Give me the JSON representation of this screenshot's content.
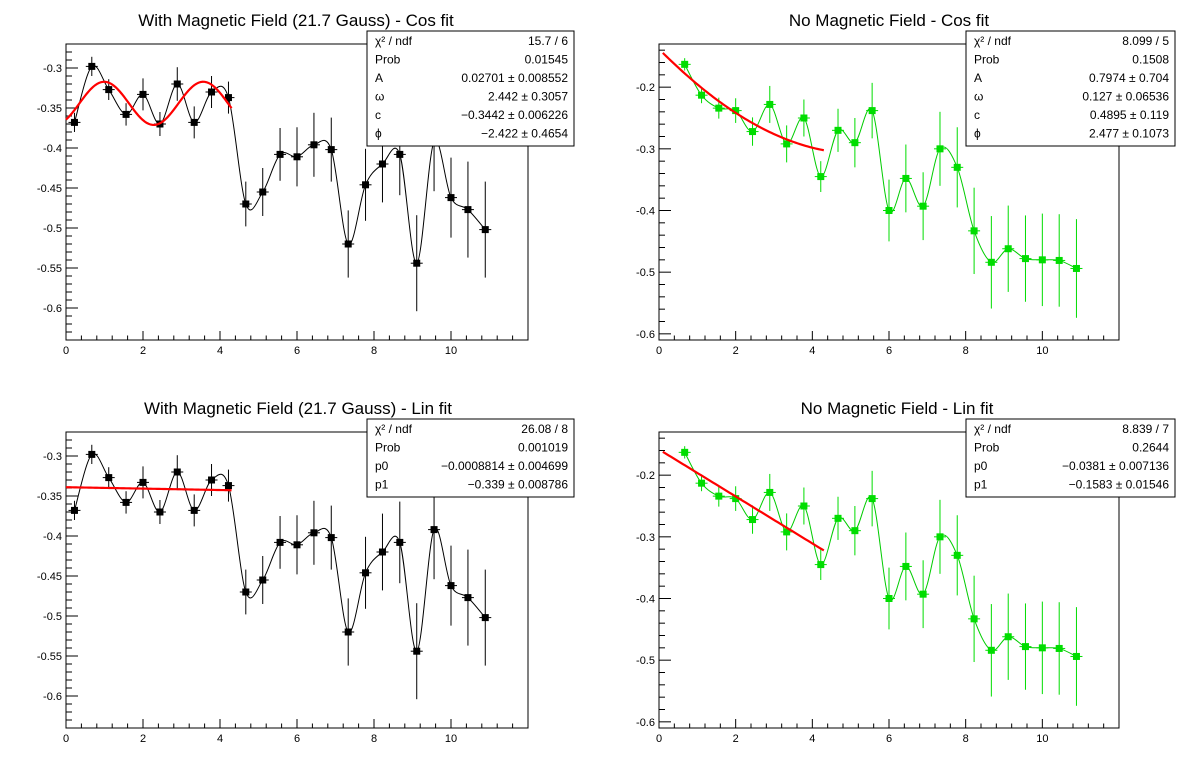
{
  "chart_data": [
    {
      "type": "scatter",
      "title": "With Magnetic Field (21.7 Gauss) - Cos fit",
      "xlim": [
        0,
        12
      ],
      "ylim": [
        -0.64,
        -0.27
      ],
      "xticks": [
        0,
        2,
        4,
        6,
        8,
        10
      ],
      "yticks": [
        -0.6,
        -0.55,
        -0.5,
        -0.45,
        -0.4,
        -0.35,
        -0.3
      ],
      "xtick_labels": [
        "0",
        "2",
        "4",
        "6",
        "8",
        "10"
      ],
      "ytick_labels": [
        "-0.6",
        "-0.55",
        "-0.5",
        "-0.45",
        "-0.4",
        "-0.35",
        "-0.3"
      ],
      "marker_color": "#000000",
      "curve_color": "#000000",
      "fit_color": "#ff0000",
      "points": {
        "x": [
          0.22,
          0.67,
          1.11,
          1.56,
          2.0,
          2.44,
          2.89,
          3.33,
          3.78,
          4.22,
          4.67,
          5.11,
          5.56,
          6.0,
          6.44,
          6.89,
          7.33,
          7.78,
          8.22,
          8.67,
          9.11,
          9.56,
          10.0,
          10.44,
          10.89
        ],
        "y": [
          -0.368,
          -0.298,
          -0.327,
          -0.358,
          -0.333,
          -0.37,
          -0.32,
          -0.368,
          -0.33,
          -0.337,
          -0.47,
          -0.455,
          -0.408,
          -0.411,
          -0.396,
          -0.402,
          -0.52,
          -0.446,
          -0.42,
          -0.408,
          -0.544,
          -0.392,
          -0.462,
          -0.477,
          -0.502
        ],
        "err": [
          0.012,
          0.012,
          0.013,
          0.014,
          0.02,
          0.015,
          0.021,
          0.02,
          0.02,
          0.02,
          0.028,
          0.03,
          0.033,
          0.037,
          0.04,
          0.04,
          0.042,
          0.045,
          0.048,
          0.051,
          0.06,
          0.062,
          0.05,
          0.06,
          0.06
        ]
      },
      "fit": {
        "model": "cos",
        "A": 0.02701,
        "omega": 2.442,
        "c": -0.3442,
        "phi": -2.422,
        "xrange": [
          0.0,
          4.3
        ]
      },
      "stats": [
        {
          "label": "χ² / ndf",
          "value": "15.7 / 6"
        },
        {
          "label": "Prob",
          "value": "0.01545"
        },
        {
          "label": "A",
          "value": "0.02701 ± 0.008552"
        },
        {
          "label": "ω",
          "value": "2.442 ± 0.3057"
        },
        {
          "label": "c",
          "value": "−0.3442 ± 0.006226"
        },
        {
          "label": "ϕ",
          "value": "−2.422 ± 0.4654"
        }
      ]
    },
    {
      "type": "scatter",
      "title": "No Magnetic Field - Cos fit",
      "xlim": [
        0,
        12
      ],
      "ylim": [
        -0.61,
        -0.13
      ],
      "xticks": [
        0,
        2,
        4,
        6,
        8,
        10
      ],
      "yticks": [
        -0.6,
        -0.5,
        -0.4,
        -0.3,
        -0.2
      ],
      "xtick_labels": [
        "0",
        "2",
        "4",
        "6",
        "8",
        "10"
      ],
      "ytick_labels": [
        "-0.6",
        "-0.5",
        "-0.4",
        "-0.3",
        "-0.2"
      ],
      "marker_color": "#00dd00",
      "curve_color": "#00cc00",
      "fit_color": "#ff0000",
      "points": {
        "x": [
          0.67,
          1.11,
          1.56,
          2.0,
          2.44,
          2.89,
          3.33,
          3.78,
          4.22,
          4.67,
          5.11,
          5.56,
          6.0,
          6.44,
          6.89,
          7.33,
          7.78,
          8.22,
          8.67,
          9.11,
          9.56,
          10.0,
          10.44,
          10.89
        ],
        "y": [
          -0.163,
          -0.213,
          -0.234,
          -0.238,
          -0.272,
          -0.228,
          -0.292,
          -0.25,
          -0.345,
          -0.27,
          -0.29,
          -0.238,
          -0.4,
          -0.348,
          -0.393,
          -0.3,
          -0.33,
          -0.433,
          -0.484,
          -0.462,
          -0.478,
          -0.48,
          -0.481,
          -0.494
        ],
        "err": [
          0.01,
          0.013,
          0.017,
          0.02,
          0.023,
          0.03,
          0.03,
          0.03,
          0.025,
          0.035,
          0.04,
          0.045,
          0.05,
          0.055,
          0.055,
          0.06,
          0.065,
          0.07,
          0.075,
          0.07,
          0.07,
          0.075,
          0.075,
          0.08
        ]
      },
      "fit": {
        "model": "cos",
        "A": 0.7974,
        "omega": 0.127,
        "c": 0.4895,
        "phi": 2.477,
        "xrange": [
          0.1,
          4.3
        ]
      },
      "stats": [
        {
          "label": "χ² / ndf",
          "value": "8.099 / 5"
        },
        {
          "label": "Prob",
          "value": "0.1508"
        },
        {
          "label": "A",
          "value": "0.7974 ± 0.704"
        },
        {
          "label": "ω",
          "value": "0.127 ± 0.06536"
        },
        {
          "label": "c",
          "value": "0.4895 ± 0.119"
        },
        {
          "label": "ϕ",
          "value": "2.477 ± 0.1073"
        }
      ]
    },
    {
      "type": "scatter",
      "title": "With Magnetic Field (21.7 Gauss) - Lin fit",
      "xlim": [
        0,
        12
      ],
      "ylim": [
        -0.64,
        -0.27
      ],
      "xticks": [
        0,
        2,
        4,
        6,
        8,
        10
      ],
      "yticks": [
        -0.6,
        -0.55,
        -0.5,
        -0.45,
        -0.4,
        -0.35,
        -0.3
      ],
      "xtick_labels": [
        "0",
        "2",
        "4",
        "6",
        "8",
        "10"
      ],
      "ytick_labels": [
        "-0.6",
        "-0.55",
        "-0.5",
        "-0.45",
        "-0.4",
        "-0.35",
        "-0.3"
      ],
      "marker_color": "#000000",
      "curve_color": "#000000",
      "fit_color": "#ff0000",
      "points": {
        "x": [
          0.22,
          0.67,
          1.11,
          1.56,
          2.0,
          2.44,
          2.89,
          3.33,
          3.78,
          4.22,
          4.67,
          5.11,
          5.56,
          6.0,
          6.44,
          6.89,
          7.33,
          7.78,
          8.22,
          8.67,
          9.11,
          9.56,
          10.0,
          10.44,
          10.89
        ],
        "y": [
          -0.368,
          -0.298,
          -0.327,
          -0.358,
          -0.333,
          -0.37,
          -0.32,
          -0.368,
          -0.33,
          -0.337,
          -0.47,
          -0.455,
          -0.408,
          -0.411,
          -0.396,
          -0.402,
          -0.52,
          -0.446,
          -0.42,
          -0.408,
          -0.544,
          -0.392,
          -0.462,
          -0.477,
          -0.502
        ],
        "err": [
          0.012,
          0.012,
          0.013,
          0.014,
          0.02,
          0.015,
          0.021,
          0.02,
          0.02,
          0.02,
          0.028,
          0.03,
          0.033,
          0.037,
          0.04,
          0.04,
          0.042,
          0.045,
          0.048,
          0.051,
          0.06,
          0.062,
          0.05,
          0.06,
          0.06
        ]
      },
      "fit": {
        "model": "lin",
        "p0": -0.0008814,
        "p1": -0.339,
        "xrange": [
          0.0,
          4.3
        ]
      },
      "stats": [
        {
          "label": "χ² / ndf",
          "value": "26.08 / 8"
        },
        {
          "label": "Prob",
          "value": "0.001019"
        },
        {
          "label": "p0",
          "value": "−0.0008814 ± 0.004699"
        },
        {
          "label": "p1",
          "value": "−0.339 ± 0.008786"
        }
      ]
    },
    {
      "type": "scatter",
      "title": "No Magnetic Field - Lin fit",
      "xlim": [
        0,
        12
      ],
      "ylim": [
        -0.61,
        -0.13
      ],
      "xticks": [
        0,
        2,
        4,
        6,
        8,
        10
      ],
      "yticks": [
        -0.6,
        -0.5,
        -0.4,
        -0.3,
        -0.2
      ],
      "xtick_labels": [
        "0",
        "2",
        "4",
        "6",
        "8",
        "10"
      ],
      "ytick_labels": [
        "-0.6",
        "-0.5",
        "-0.4",
        "-0.3",
        "-0.2"
      ],
      "marker_color": "#00dd00",
      "curve_color": "#00cc00",
      "fit_color": "#ff0000",
      "points": {
        "x": [
          0.67,
          1.11,
          1.56,
          2.0,
          2.44,
          2.89,
          3.33,
          3.78,
          4.22,
          4.67,
          5.11,
          5.56,
          6.0,
          6.44,
          6.89,
          7.33,
          7.78,
          8.22,
          8.67,
          9.11,
          9.56,
          10.0,
          10.44,
          10.89
        ],
        "y": [
          -0.163,
          -0.213,
          -0.234,
          -0.238,
          -0.272,
          -0.228,
          -0.292,
          -0.25,
          -0.345,
          -0.27,
          -0.29,
          -0.238,
          -0.4,
          -0.348,
          -0.393,
          -0.3,
          -0.33,
          -0.433,
          -0.484,
          -0.462,
          -0.478,
          -0.48,
          -0.481,
          -0.494
        ],
        "err": [
          0.01,
          0.013,
          0.017,
          0.02,
          0.023,
          0.03,
          0.03,
          0.03,
          0.025,
          0.035,
          0.04,
          0.045,
          0.05,
          0.055,
          0.055,
          0.06,
          0.065,
          0.07,
          0.075,
          0.07,
          0.07,
          0.075,
          0.075,
          0.08
        ]
      },
      "fit": {
        "model": "lin",
        "p0": -0.0381,
        "p1": -0.1583,
        "xrange": [
          0.1,
          4.3
        ]
      },
      "stats": [
        {
          "label": "χ² / ndf",
          "value": "8.839 / 7"
        },
        {
          "label": "Prob",
          "value": "0.2644"
        },
        {
          "label": "p0",
          "value": "−0.0381 ± 0.007136"
        },
        {
          "label": "p1",
          "value": "−0.1583 ± 0.01546"
        }
      ]
    }
  ]
}
